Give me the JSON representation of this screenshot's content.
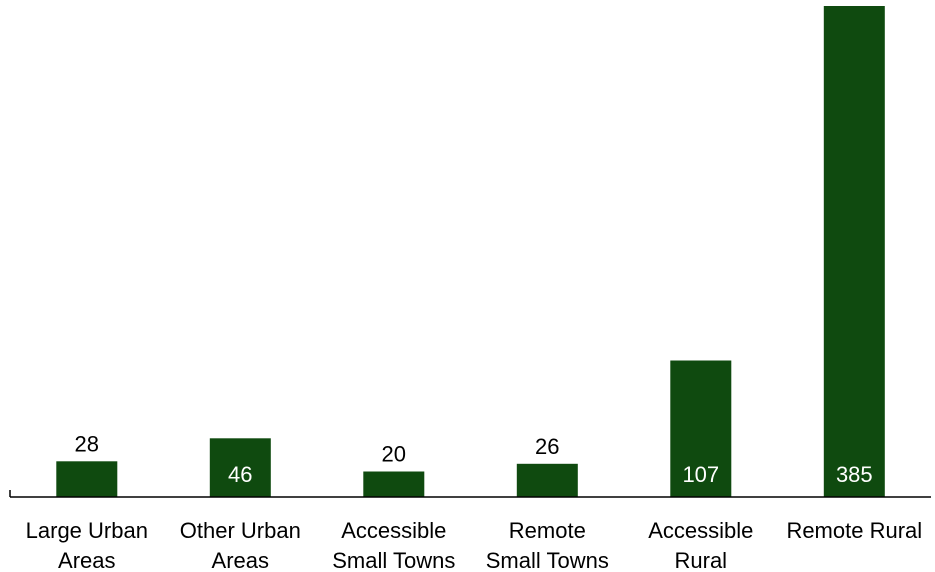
{
  "chart_data": {
    "type": "bar",
    "categories": [
      [
        "Large Urban",
        "Areas"
      ],
      [
        "Other Urban",
        "Areas"
      ],
      [
        "Accessible",
        "Small Towns"
      ],
      [
        "Remote",
        "Small Towns"
      ],
      [
        "Accessible",
        "Rural"
      ],
      [
        "Remote Rural"
      ]
    ],
    "values": [
      28,
      46,
      20,
      26,
      107,
      385
    ],
    "data_labels": [
      "28",
      "46",
      "20",
      "26",
      "107",
      "385"
    ],
    "title": "",
    "xlabel": "",
    "ylabel": "",
    "ylim": [
      0,
      385
    ],
    "grid": false,
    "legend": "none",
    "colors": {
      "bar": "#0f4a0f",
      "label_inside": "#ffffff",
      "label_outside": "#000000",
      "axis": "#000000"
    }
  }
}
